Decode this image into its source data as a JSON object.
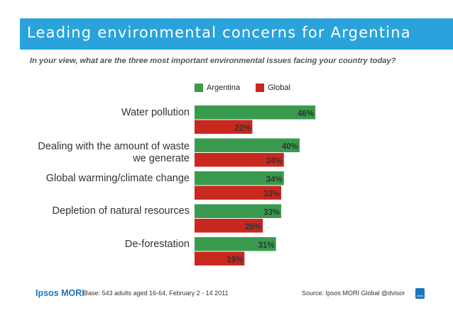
{
  "header": {
    "title": "Leading environmental concerns for Argentina",
    "question": "In your view, what are the three most important environmental issues facing your country today?"
  },
  "colors": {
    "title_bg": "#2aa3dc",
    "argentina": "#3a9a4e",
    "global": "#c8281e"
  },
  "legend": {
    "argentina": "Argentina",
    "global": "Global"
  },
  "chart_data": {
    "type": "bar",
    "orientation": "horizontal",
    "title": "Leading environmental concerns for Argentina",
    "categories": [
      [
        "Water pollution"
      ],
      [
        "Dealing with the amount of waste",
        "we generate"
      ],
      [
        "Global warming/climate change"
      ],
      [
        "Depletion of natural resources"
      ],
      [
        "De-forestation"
      ]
    ],
    "series": [
      {
        "name": "Argentina",
        "values": [
          46,
          40,
          34,
          33,
          31
        ]
      },
      {
        "name": "Global",
        "values": [
          22,
          34,
          33,
          26,
          19
        ]
      }
    ],
    "value_suffix": "%",
    "xlim": [
      0,
      50
    ],
    "grid": false,
    "legend_position": "top"
  },
  "footer": {
    "logo": "Ipsos MORI",
    "base": "Base: 543 adults aged 16-64, February 2 - 14 2011",
    "source": "Source: Ipsos MORI Global @dvisor",
    "badge": "Ipsos"
  }
}
